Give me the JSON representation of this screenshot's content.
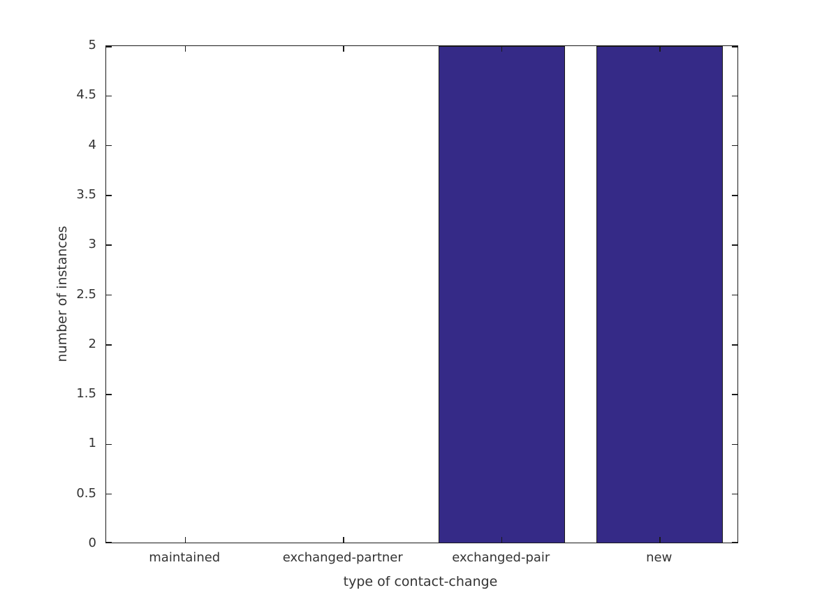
{
  "chart_data": {
    "type": "bar",
    "title": "",
    "categories": [
      "maintained",
      "exchanged-partner",
      "exchanged-pair",
      "new"
    ],
    "values": [
      0,
      0,
      5,
      5
    ],
    "xlabel": "type of contact-change",
    "ylabel": "number of instances",
    "ylim": [
      0,
      5
    ],
    "yticks": [
      0,
      0.5,
      1,
      1.5,
      2,
      2.5,
      3,
      3.5,
      4,
      4.5,
      5
    ],
    "ytick_labels": [
      "0",
      "0.5",
      "1",
      "1.5",
      "2",
      "2.5",
      "3",
      "3.5",
      "4",
      "4.5",
      "5"
    ],
    "grid": false,
    "legend": null,
    "bar_width_fraction": 0.8,
    "colors": {
      "bar_fill": "#352A87",
      "bar_edge": "#1a1a1a",
      "axis_line": "#1a1a1a",
      "text": "#333333",
      "background": "#ffffff"
    },
    "tick_style": "inward, mirrored on top and right axes"
  }
}
